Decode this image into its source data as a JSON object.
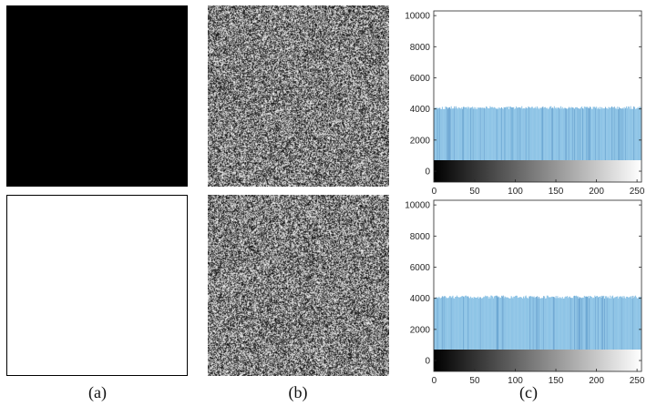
{
  "panels": {
    "a": {
      "caption": "(a)",
      "top_image": "all-black image",
      "bottom_image": "all-white image"
    },
    "b": {
      "caption": "(b)",
      "top_image": "noise-like encrypted image",
      "bottom_image": "noise-like encrypted image"
    },
    "c": {
      "caption": "(c)"
    }
  },
  "colors": {
    "bar": "#8ec4e6",
    "bar_dark": "#6fa9d4",
    "axis": "#262626"
  },
  "chart_data": [
    {
      "type": "bar",
      "title": "",
      "xlabel": "",
      "ylabel": "",
      "x": "gray levels 0-255",
      "bin_count": 256,
      "values_approx": 4096,
      "value_range": [
        3980,
        4180
      ],
      "xlim": [
        0,
        255
      ],
      "ylim": [
        -700,
        10300
      ],
      "xticks": [
        0,
        50,
        100,
        150,
        200,
        250
      ],
      "yticks": [
        0,
        2000,
        4000,
        6000,
        8000,
        10000
      ],
      "colorbar": "grayscale 0-255 below x-axis",
      "grid": false
    },
    {
      "type": "bar",
      "title": "",
      "xlabel": "",
      "ylabel": "",
      "x": "gray levels 0-255",
      "bin_count": 256,
      "values_approx": 4096,
      "value_range": [
        3980,
        4180
      ],
      "xlim": [
        0,
        255
      ],
      "ylim": [
        -700,
        10300
      ],
      "xticks": [
        0,
        50,
        100,
        150,
        200,
        250
      ],
      "yticks": [
        0,
        2000,
        4000,
        6000,
        8000,
        10000
      ],
      "colorbar": "grayscale 0-255 below x-axis",
      "grid": false
    }
  ]
}
